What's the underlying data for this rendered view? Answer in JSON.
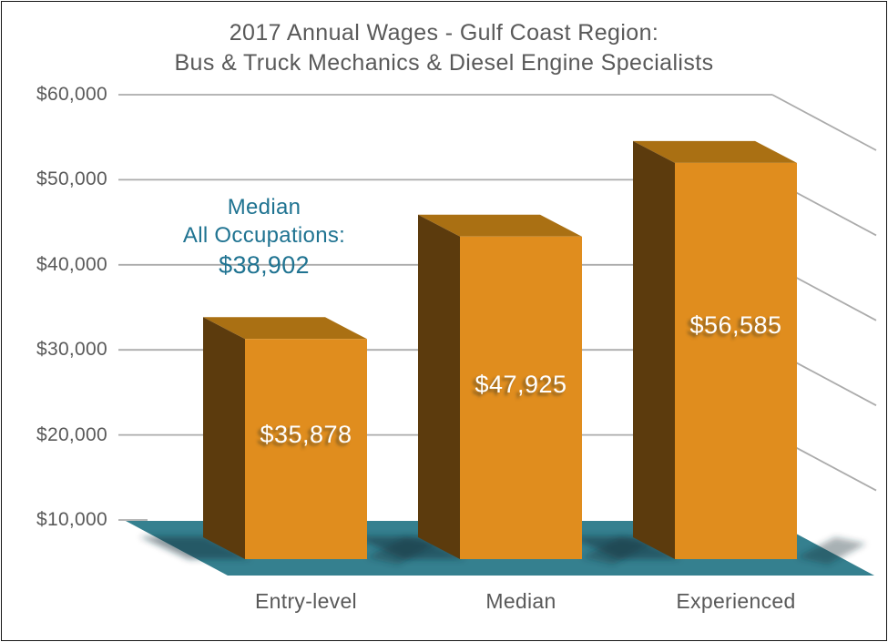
{
  "title": {
    "line1": "2017 Annual Wages - Gulf Coast Region:",
    "line2": "Bus & Truck Mechanics & Diesel Engine Specialists",
    "color": "#595959"
  },
  "chart_data": {
    "type": "bar",
    "style": "3d-column",
    "categories": [
      "Entry-level",
      "Median",
      "Experienced"
    ],
    "values": [
      35878,
      47925,
      56585
    ],
    "value_labels": [
      "$35,878",
      "$47,925",
      "$56,585"
    ],
    "title": "2017 Annual Wages - Gulf Coast Region: Bus & Truck Mechanics & Diesel Engine Specialists",
    "xlabel": "",
    "ylabel": "",
    "ylim": [
      10000,
      60000
    ],
    "ytick_interval": 10000,
    "ytick_labels": [
      "$10,000",
      "$20,000",
      "$30,000",
      "$40,000",
      "$50,000",
      "$60,000"
    ],
    "grid": true,
    "legend": "none",
    "annotation": {
      "text": "Median All Occupations: $38,902",
      "value": 38902
    },
    "colors": {
      "bar_front": "#e08d1e",
      "bar_top": "#aa7013",
      "bar_side": "#5c3b0d",
      "floor": "#35808f",
      "gridline": "#ababab",
      "axis_text": "#595959",
      "data_label_text": "#ffffff",
      "annotation_text": "#1f7391"
    }
  },
  "annotation": {
    "line1": "Median",
    "line2": "All Occupations:",
    "line3": "$38,902"
  }
}
